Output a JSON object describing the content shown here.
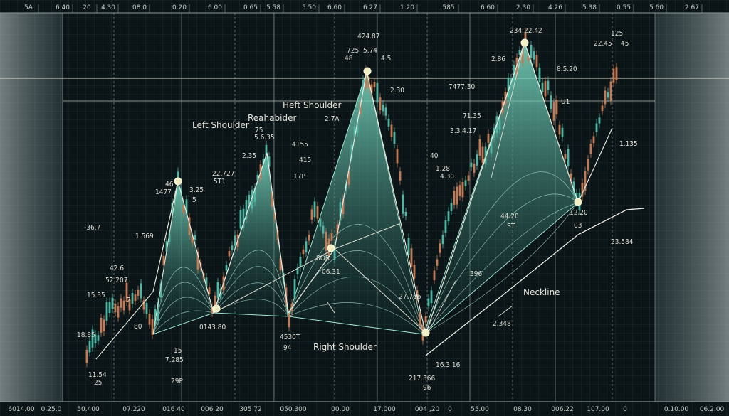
{
  "chart_data": {
    "type": "line",
    "title": "",
    "xlabel": "",
    "ylabel": "",
    "top_tick_labels": [
      "5A",
      "6.40",
      "20",
      "4.30",
      "08.0",
      "0.20",
      "6.00",
      "0.65",
      "5.58",
      "5.50",
      "6.60",
      "6.27",
      "1.20",
      "585",
      "6.60",
      "2.30",
      "4.26",
      "5.38",
      "0.55",
      "5.60",
      "2.67"
    ],
    "bottom_tick_labels": [
      "6014.00",
      "0.25.0",
      "50.400",
      "07.220",
      "016 40",
      "006 20",
      "305 72",
      "050.300",
      "00.00",
      "17.000",
      "004 ,20",
      "0",
      "55.00",
      "08.30",
      "006.22",
      "107.00",
      "0",
      "0.10.00",
      "06.2.00"
    ],
    "pattern_annotations": [
      "Left Shoulder",
      "Reahabider",
      "Heft Shoulder",
      "Right Shoulder",
      "Neckline"
    ],
    "pivot_points": [
      {
        "name": "left-shoulder-peak",
        "value": "46"
      },
      {
        "name": "neckline-point-1",
        "value": "0143.80"
      },
      {
        "name": "neckline-point-2",
        "value": "06.31"
      },
      {
        "name": "head-peak",
        "value": "424.87"
      },
      {
        "name": "neckline-point-3",
        "value": "27.766"
      },
      {
        "name": "right-shoulder-peak",
        "value": "234.22.42"
      },
      {
        "name": "right-trough",
        "value": "12.20"
      }
    ],
    "price_labels": [
      "-36.7",
      "1.569",
      "42.6",
      "52.207",
      "15.35",
      "2",
      "18.85",
      "11.54",
      "25",
      "80",
      "7.285",
      "15",
      "29P",
      "1477",
      "5",
      "3.25",
      "22.727",
      "5T1",
      "2.35",
      "5.6.35",
      "75",
      "17P",
      "4155",
      "415",
      "2.7A",
      "725",
      "5.74",
      "4.5",
      "48",
      "2.30",
      "7477.30",
      "71.35",
      "3.3.4.17",
      "1.28",
      "4.30",
      "40",
      "2.86",
      "8.5.20",
      "U1",
      "1.135",
      "125",
      "22.45",
      "45",
      "44.20",
      "ST",
      "03",
      "23.584",
      "396",
      "2.348",
      "16.3.16",
      "217.366",
      "96",
      "4530T",
      "94",
      "8OR"
    ],
    "trend_lines": [
      {
        "name": "upper-resistance",
        "slope": "flat"
      },
      {
        "name": "neckline-trend",
        "slope": "rising"
      }
    ],
    "colors": {
      "background": "#0b1416",
      "up_candle": "#4fb6a4",
      "down_candle": "#c47a55",
      "area_fill": "#3fa894",
      "annotation": "#e6e6dc",
      "pivot": "#f2efc4",
      "side_panel": "#9fb7b8"
    }
  }
}
